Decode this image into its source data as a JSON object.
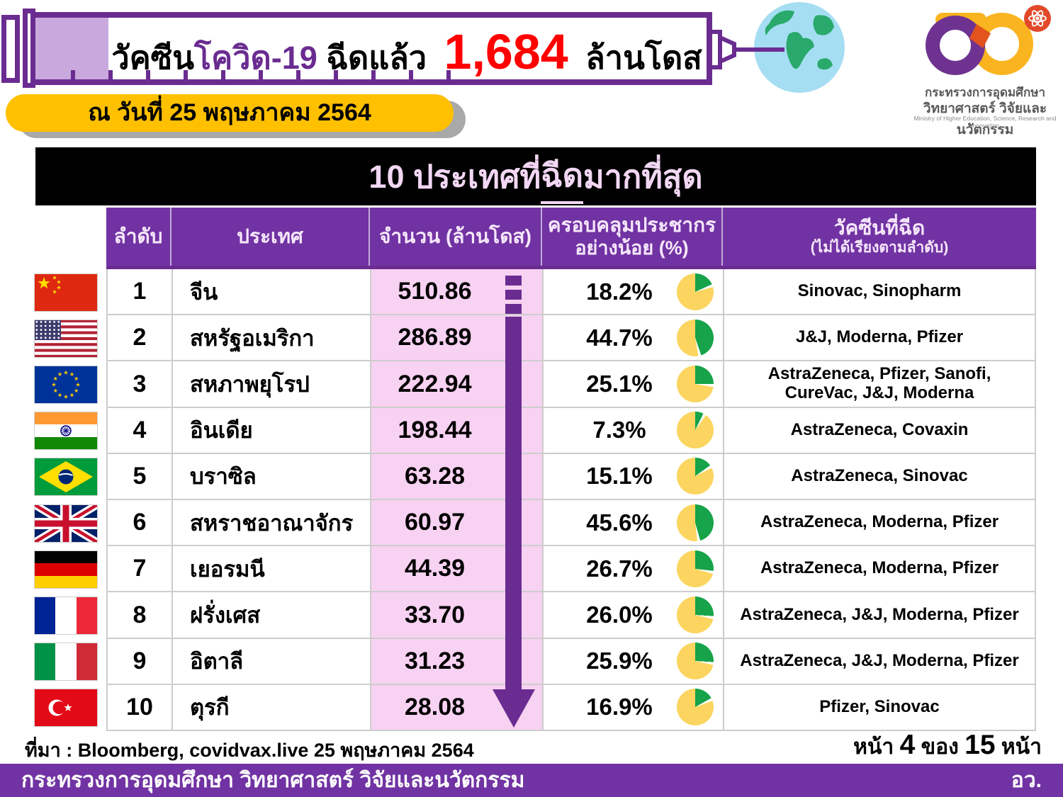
{
  "header": {
    "title_part1": "วัคซีน",
    "title_part2": "โควิด-19",
    "title_part3": " ฉีดแล้ว ",
    "title_number": "1,684",
    "title_part4": " ล้านโดส",
    "date_banner": "ณ วันที่ 25 พฤษภาคม 2564",
    "logo": {
      "line1": "กระทรวงการอุดมศึกษา",
      "line2": "วิทยาศาสตร์ วิจัยและนวัตกรรม",
      "line3": "Ministry of Higher Education, Science, Research and Innovation"
    }
  },
  "section_title": {
    "prefix": "10 ประเทศที่",
    "underlined": "ฉีด",
    "suffix": "มากที่สุด"
  },
  "table": {
    "header": {
      "rank": "ลำดับ",
      "country": "ประเทศ",
      "amount": "จำนวน (ล้านโดส)",
      "coverage_line1": "ครอบคลุมประชากร",
      "coverage_line2": "อย่างน้อย (%)",
      "vaccines": "วัคซีนที่ฉีด",
      "vaccines_note": "(ไม่ได้เรียงตามลำดับ)"
    },
    "rows": [
      {
        "rank": "1",
        "country": "จีน",
        "flag": "china",
        "doses": "510.86",
        "pct": 18.2,
        "pct_label": "18.2%",
        "vaccines": "Sinovac, Sinopharm"
      },
      {
        "rank": "2",
        "country": "สหรัฐอเมริกา",
        "flag": "usa",
        "doses": "286.89",
        "pct": 44.7,
        "pct_label": "44.7%",
        "vaccines": "J&J, Moderna, Pfizer"
      },
      {
        "rank": "3",
        "country": "สหภาพยุโรป",
        "flag": "eu",
        "doses": "222.94",
        "pct": 25.1,
        "pct_label": "25.1%",
        "vaccines": "AstraZeneca, Pfizer, Sanofi, CureVac, J&J, Moderna"
      },
      {
        "rank": "4",
        "country": "อินเดีย",
        "flag": "india",
        "doses": "198.44",
        "pct": 7.3,
        "pct_label": "7.3%",
        "vaccines": "AstraZeneca, Covaxin"
      },
      {
        "rank": "5",
        "country": "บราซิล",
        "flag": "brazil",
        "doses": "63.28",
        "pct": 15.1,
        "pct_label": "15.1%",
        "vaccines": "AstraZeneca, Sinovac"
      },
      {
        "rank": "6",
        "country": "สหราชอาณาจักร",
        "flag": "uk",
        "doses": "60.97",
        "pct": 45.6,
        "pct_label": "45.6%",
        "vaccines": "AstraZeneca, Moderna, Pfizer"
      },
      {
        "rank": "7",
        "country": "เยอรมนี",
        "flag": "germany",
        "doses": "44.39",
        "pct": 26.7,
        "pct_label": "26.7%",
        "vaccines": "AstraZeneca, Moderna, Pfizer"
      },
      {
        "rank": "8",
        "country": "ฝรั่งเศส",
        "flag": "france",
        "doses": "33.70",
        "pct": 26.0,
        "pct_label": "26.0%",
        "vaccines": "AstraZeneca, J&J, Moderna, Pfizer"
      },
      {
        "rank": "9",
        "country": "อิตาลี",
        "flag": "italy",
        "doses": "31.23",
        "pct": 25.9,
        "pct_label": "25.9%",
        "vaccines": "AstraZeneca, J&J, Moderna, Pfizer"
      },
      {
        "rank": "10",
        "country": "ตุรกี",
        "flag": "turkey",
        "doses": "28.08",
        "pct": 16.9,
        "pct_label": "16.9%",
        "vaccines": "Pfizer, Sinovac"
      }
    ]
  },
  "chart_data": {
    "type": "table",
    "title": "10 ประเทศที่ฉีดมากที่สุด",
    "total_doses_label": "วัคซีนโควิด-19 ฉีดแล้ว 1,684 ล้านโดส",
    "as_of": "ณ วันที่ 25 พฤษภาคม 2564",
    "columns": [
      "ลำดับ",
      "ประเทศ",
      "จำนวน (ล้านโดส)",
      "ครอบคลุมประชากรอย่างน้อย (%)",
      "วัคซีนที่ฉีด (ไม่ได้เรียงตามลำดับ)"
    ],
    "rows": [
      [
        1,
        "จีน",
        510.86,
        18.2,
        "Sinovac, Sinopharm"
      ],
      [
        2,
        "สหรัฐอเมริกา",
        286.89,
        44.7,
        "J&J, Moderna, Pfizer"
      ],
      [
        3,
        "สหภาพยุโรป",
        222.94,
        25.1,
        "AstraZeneca, Pfizer, Sanofi, CureVac, J&J, Moderna"
      ],
      [
        4,
        "อินเดีย",
        198.44,
        7.3,
        "AstraZeneca, Covaxin"
      ],
      [
        5,
        "บราซิล",
        63.28,
        15.1,
        "AstraZeneca, Sinovac"
      ],
      [
        6,
        "สหราชอาณาจักร",
        60.97,
        45.6,
        "AstraZeneca, Moderna, Pfizer"
      ],
      [
        7,
        "เยอรมนี",
        44.39,
        26.7,
        "AstraZeneca, Moderna, Pfizer"
      ],
      [
        8,
        "ฝรั่งเศส",
        33.7,
        26.0,
        "AstraZeneca, J&J, Moderna, Pfizer"
      ],
      [
        9,
        "อิตาลี",
        31.23,
        25.9,
        "AstraZeneca, J&J, Moderna, Pfizer"
      ],
      [
        10,
        "ตุรกี",
        28.08,
        16.9,
        "Pfizer, Sinovac"
      ]
    ],
    "pie_charts": {
      "description": "green slice = coverage %, rest yellow",
      "values": [
        18.2,
        44.7,
        25.1,
        7.3,
        15.1,
        45.6,
        26.7,
        26.0,
        25.9,
        16.9
      ]
    }
  },
  "footer": {
    "source": "ที่มา : Bloomberg, covidvax.live 25 พฤษภาคม 2564",
    "page_prefix": "หน้า ",
    "page_number": "4",
    "page_of": " ของ ",
    "page_total": "15",
    "page_suffix": " หน้า",
    "ministry": "กระทรวงการอุดมศึกษา วิทยาศาสตร์ วิจัยและนวัตกรรม",
    "abbrev": "อว."
  },
  "colors": {
    "accent_purple": "#7133a3",
    "syringe_purple": "#6a2c91",
    "lavender_fill": "#c9a9dd",
    "banner_yellow": "#ffc000",
    "highlight_red": "#ff0000",
    "pink_cell": "#f8d2f2",
    "pie_green": "#17a349",
    "pie_yellow": "#fbd55f",
    "title_pink": "#f2d7f4"
  }
}
